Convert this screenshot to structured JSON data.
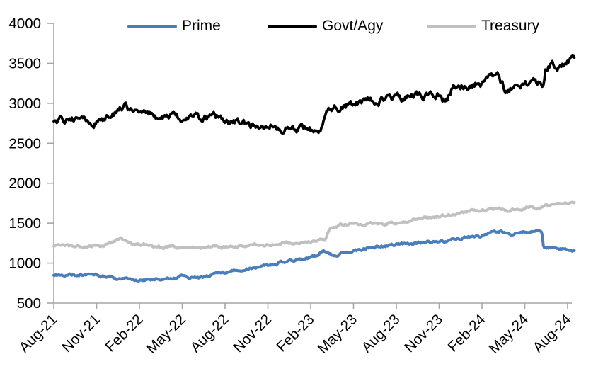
{
  "chart_data": {
    "type": "line",
    "title": "",
    "xlabel": "",
    "ylabel": "",
    "x_unit": "months since Aug-2021",
    "ylim": [
      500,
      4000
    ],
    "y_ticks": [
      500,
      1000,
      1500,
      2000,
      2500,
      3000,
      3500,
      4000
    ],
    "x_tick_months": [
      0,
      3,
      6,
      9,
      12,
      15,
      18,
      21,
      24,
      27,
      30,
      33,
      36
    ],
    "x_tick_labels": [
      "Aug-21",
      "Nov-21",
      "Feb-22",
      "May-22",
      "Aug-22",
      "Nov-22",
      "Feb-23",
      "May-23",
      "Aug-23",
      "Nov-23",
      "Feb-24",
      "May-24",
      "Aug-24"
    ],
    "grid": false,
    "legend_position": "top",
    "axis_color": "#a6a6a6",
    "label_color": "#000000",
    "series": [
      {
        "name": "Prime",
        "color": "#4a7ebb",
        "line_width": 4,
        "noise": 3,
        "seed": 3,
        "points": [
          [
            0,
            852
          ],
          [
            0.5,
            850
          ],
          [
            1,
            848
          ],
          [
            1.5,
            843
          ],
          [
            2,
            842
          ],
          [
            2.5,
            843
          ],
          [
            3,
            840
          ],
          [
            3.5,
            835
          ],
          [
            4,
            828
          ],
          [
            4.5,
            820
          ],
          [
            5,
            812
          ],
          [
            5.5,
            805
          ],
          [
            6,
            800
          ],
          [
            6.5,
            800
          ],
          [
            7,
            803
          ],
          [
            7.5,
            808
          ],
          [
            8,
            813
          ],
          [
            8.5,
            816
          ],
          [
            9,
            818
          ],
          [
            9.3,
            812
          ],
          [
            9.7,
            816
          ],
          [
            10,
            826
          ],
          [
            10.5,
            832
          ],
          [
            11,
            845
          ],
          [
            11.5,
            858
          ],
          [
            12,
            872
          ],
          [
            12.5,
            895
          ],
          [
            13,
            920
          ],
          [
            13.5,
            940
          ],
          [
            14,
            958
          ],
          [
            14.5,
            972
          ],
          [
            15,
            988
          ],
          [
            15.5,
            1002
          ],
          [
            16,
            1016
          ],
          [
            16.5,
            1030
          ],
          [
            16.8,
            1028
          ],
          [
            17,
            1042
          ],
          [
            17.5,
            1058
          ],
          [
            18,
            1072
          ],
          [
            18.3,
            1082
          ],
          [
            18.6,
            1120
          ],
          [
            18.9,
            1158
          ],
          [
            19.2,
            1152
          ],
          [
            19.5,
            1108
          ],
          [
            19.8,
            1098
          ],
          [
            20,
            1115
          ],
          [
            20.5,
            1132
          ],
          [
            21,
            1148
          ],
          [
            21.5,
            1162
          ],
          [
            22,
            1178
          ],
          [
            22.5,
            1192
          ],
          [
            23,
            1205
          ],
          [
            23.5,
            1218
          ],
          [
            24,
            1228
          ],
          [
            24.6,
            1245
          ],
          [
            25,
            1238
          ],
          [
            25.5,
            1250
          ],
          [
            26,
            1258
          ],
          [
            26.5,
            1264
          ],
          [
            27,
            1272
          ],
          [
            27.5,
            1285
          ],
          [
            28,
            1300
          ],
          [
            28.5,
            1315
          ],
          [
            29,
            1330
          ],
          [
            29.5,
            1340
          ],
          [
            30,
            1348
          ],
          [
            30.5,
            1362
          ],
          [
            31,
            1378
          ],
          [
            31.5,
            1390
          ],
          [
            31.9,
            1394
          ],
          [
            32.1,
            1368
          ],
          [
            32.4,
            1390
          ],
          [
            33,
            1398
          ],
          [
            33.5,
            1404
          ],
          [
            34,
            1410
          ],
          [
            34.2,
            1414
          ],
          [
            34.32,
            1188
          ],
          [
            34.7,
            1192
          ],
          [
            35,
            1186
          ],
          [
            35.3,
            1176
          ],
          [
            35.7,
            1180
          ],
          [
            36,
            1178
          ],
          [
            36.5,
            1170
          ]
        ]
      },
      {
        "name": "Govt/Agy",
        "color": "#000000",
        "line_width": 3.6,
        "noise": 8,
        "seed": 7,
        "points": [
          [
            0,
            2778
          ],
          [
            0.4,
            2792
          ],
          [
            0.8,
            2780
          ],
          [
            1.2,
            2772
          ],
          [
            1.6,
            2790
          ],
          [
            2,
            2786
          ],
          [
            2.4,
            2775
          ],
          [
            2.8,
            2795
          ],
          [
            3.2,
            2805
          ],
          [
            3.6,
            2825
          ],
          [
            4,
            2848
          ],
          [
            4.4,
            2895
          ],
          [
            4.8,
            2925
          ],
          [
            5,
            2930
          ],
          [
            5.3,
            2890
          ],
          [
            5.6,
            2908
          ],
          [
            6,
            2865
          ],
          [
            6.3,
            2882
          ],
          [
            6.7,
            2858
          ],
          [
            7,
            2792
          ],
          [
            7.3,
            2818
          ],
          [
            7.6,
            2835
          ],
          [
            8,
            2810
          ],
          [
            8.3,
            2830
          ],
          [
            8.6,
            2806
          ],
          [
            9,
            2802
          ],
          [
            9.3,
            2824
          ],
          [
            9.6,
            2798
          ],
          [
            10,
            2818
          ],
          [
            10.3,
            2790
          ],
          [
            10.6,
            2806
          ],
          [
            11,
            2798
          ],
          [
            11.5,
            2804
          ],
          [
            12,
            2774
          ],
          [
            12.5,
            2764
          ],
          [
            13,
            2754
          ],
          [
            13.5,
            2744
          ],
          [
            14,
            2714
          ],
          [
            14.3,
            2722
          ],
          [
            14.7,
            2704
          ],
          [
            15,
            2698
          ],
          [
            15.3,
            2728
          ],
          [
            15.7,
            2702
          ],
          [
            16,
            2704
          ],
          [
            16.3,
            2738
          ],
          [
            16.7,
            2714
          ],
          [
            17,
            2694
          ],
          [
            17.3,
            2722
          ],
          [
            17.7,
            2684
          ],
          [
            18,
            2666
          ],
          [
            18.3,
            2652
          ],
          [
            18.6,
            2698
          ],
          [
            18.85,
            2778
          ],
          [
            19.1,
            2872
          ],
          [
            19.4,
            2918
          ],
          [
            19.6,
            2928
          ],
          [
            20,
            2918
          ],
          [
            20.5,
            2958
          ],
          [
            21,
            3000
          ],
          [
            21.4,
            3042
          ],
          [
            21.8,
            3038
          ],
          [
            22.2,
            3062
          ],
          [
            22.6,
            3044
          ],
          [
            23,
            3054
          ],
          [
            23.4,
            3072
          ],
          [
            23.8,
            3058
          ],
          [
            24.2,
            3080
          ],
          [
            24.6,
            3064
          ],
          [
            25,
            3098
          ],
          [
            25.4,
            3110
          ],
          [
            25.8,
            3094
          ],
          [
            26.2,
            3108
          ],
          [
            26.6,
            3100
          ],
          [
            27,
            3124
          ],
          [
            27.25,
            3038
          ],
          [
            27.55,
            3052
          ],
          [
            27.95,
            3230
          ],
          [
            28.2,
            3252
          ],
          [
            28.5,
            3208
          ],
          [
            28.8,
            3242
          ],
          [
            29.2,
            3220
          ],
          [
            29.6,
            3254
          ],
          [
            30,
            3250
          ],
          [
            30.4,
            3264
          ],
          [
            30.9,
            3300
          ],
          [
            31.2,
            3290
          ],
          [
            31.6,
            3172
          ],
          [
            32,
            3194
          ],
          [
            32.5,
            3208
          ],
          [
            33,
            3212
          ],
          [
            33.5,
            3224
          ],
          [
            34,
            3240
          ],
          [
            34.3,
            3248
          ],
          [
            34.45,
            3460
          ],
          [
            34.8,
            3480
          ],
          [
            35.2,
            3468
          ],
          [
            35.6,
            3494
          ],
          [
            36,
            3508
          ],
          [
            36.5,
            3528
          ]
        ]
      },
      {
        "name": "Treasury",
        "color": "#c0c0c0",
        "line_width": 4,
        "noise": 3,
        "seed": 5,
        "points": [
          [
            0,
            1198
          ],
          [
            0.5,
            1192
          ],
          [
            1,
            1200
          ],
          [
            1.5,
            1195
          ],
          [
            2,
            1205
          ],
          [
            2.5,
            1200
          ],
          [
            3,
            1212
          ],
          [
            3.5,
            1222
          ],
          [
            4,
            1248
          ],
          [
            4.4,
            1272
          ],
          [
            4.7,
            1288
          ],
          [
            5,
            1268
          ],
          [
            5.3,
            1252
          ],
          [
            6,
            1232
          ],
          [
            6.5,
            1222
          ],
          [
            7,
            1216
          ],
          [
            7.5,
            1210
          ],
          [
            8,
            1212
          ],
          [
            8.5,
            1205
          ],
          [
            9,
            1200
          ],
          [
            9.5,
            1208
          ],
          [
            10,
            1212
          ],
          [
            10.5,
            1205
          ],
          [
            11,
            1208
          ],
          [
            11.5,
            1212
          ],
          [
            12,
            1210
          ],
          [
            12.5,
            1215
          ],
          [
            13,
            1218
          ],
          [
            13.5,
            1222
          ],
          [
            14,
            1226
          ],
          [
            14.5,
            1230
          ],
          [
            15,
            1232
          ],
          [
            15.5,
            1238
          ],
          [
            16,
            1262
          ],
          [
            16.5,
            1265
          ],
          [
            17,
            1262
          ],
          [
            17.5,
            1268
          ],
          [
            18,
            1264
          ],
          [
            18.5,
            1268
          ],
          [
            19,
            1275
          ],
          [
            19.2,
            1390
          ],
          [
            19.4,
            1462
          ],
          [
            19.7,
            1478
          ],
          [
            20,
            1472
          ],
          [
            20.3,
            1482
          ],
          [
            20.6,
            1470
          ],
          [
            21,
            1480
          ],
          [
            21.5,
            1478
          ],
          [
            22,
            1488
          ],
          [
            22.5,
            1492
          ],
          [
            23,
            1500
          ],
          [
            23.5,
            1508
          ],
          [
            24,
            1518
          ],
          [
            24.5,
            1528
          ],
          [
            25,
            1540
          ],
          [
            25.5,
            1548
          ],
          [
            26,
            1558
          ],
          [
            26.5,
            1568
          ],
          [
            27,
            1578
          ],
          [
            27.5,
            1595
          ],
          [
            28,
            1610
          ],
          [
            28.5,
            1628
          ],
          [
            29,
            1640
          ],
          [
            29.3,
            1652
          ],
          [
            29.8,
            1648
          ],
          [
            30,
            1652
          ],
          [
            30.5,
            1668
          ],
          [
            31,
            1672
          ],
          [
            31.5,
            1668
          ],
          [
            31.8,
            1640
          ],
          [
            32.2,
            1668
          ],
          [
            32.5,
            1665
          ],
          [
            33,
            1688
          ],
          [
            33.3,
            1700
          ],
          [
            33.8,
            1695
          ],
          [
            34.2,
            1708
          ],
          [
            34.6,
            1715
          ],
          [
            35,
            1728
          ],
          [
            35.5,
            1738
          ],
          [
            36,
            1748
          ],
          [
            36.5,
            1758
          ]
        ]
      }
    ]
  }
}
